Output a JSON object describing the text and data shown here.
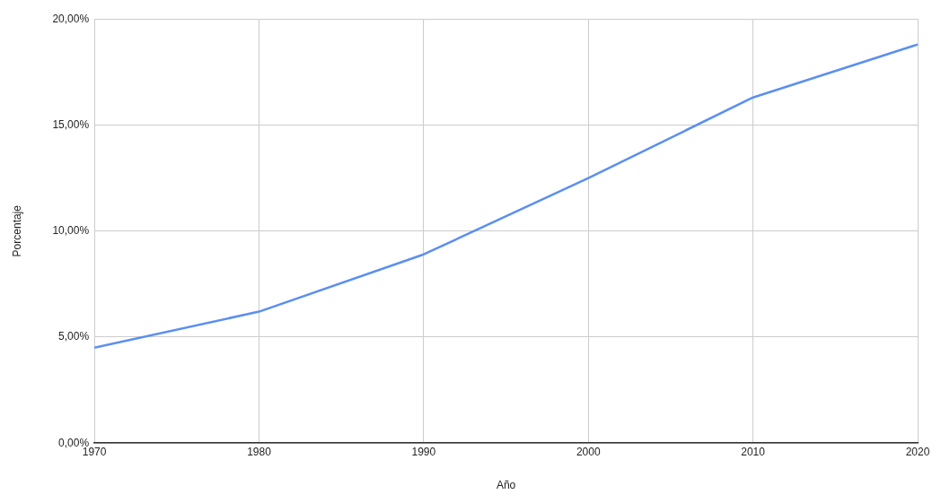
{
  "chart_data": {
    "type": "line",
    "xlabel": "Año",
    "ylabel": "Porcentaje",
    "x": [
      1970,
      1980,
      1990,
      2000,
      2010,
      2020
    ],
    "series": [
      {
        "color": "#5b8ff0",
        "values": [
          4.5,
          6.2,
          8.9,
          12.5,
          16.3,
          18.8
        ]
      }
    ],
    "xlim": [
      1970,
      2020
    ],
    "xticks": [
      1970,
      1980,
      1990,
      2000,
      2010,
      2020
    ],
    "ylim": [
      0,
      20
    ],
    "yticks": [
      {
        "value": 0,
        "label": "0,00%"
      },
      {
        "value": 5,
        "label": "5,00%"
      },
      {
        "value": 10,
        "label": "10,00%"
      },
      {
        "value": 15,
        "label": "15,00%"
      },
      {
        "value": 20,
        "label": "20,00%"
      }
    ],
    "grid": true,
    "legend": false,
    "marker": "none",
    "line_style": "solid"
  }
}
